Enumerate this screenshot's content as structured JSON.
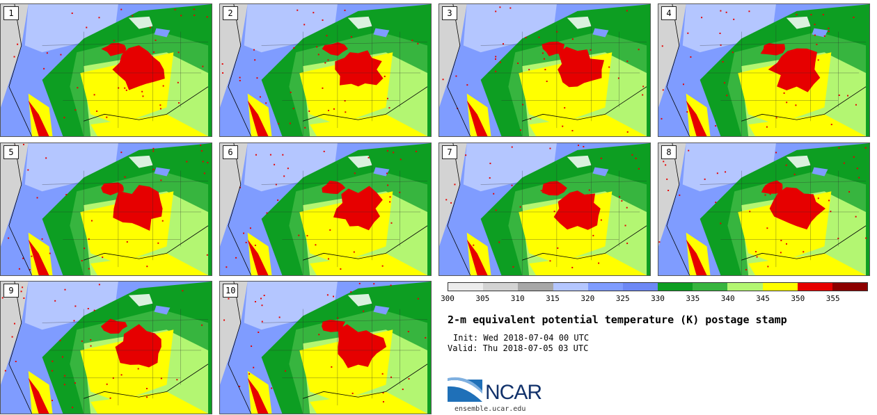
{
  "panels": [
    {
      "label": "1"
    },
    {
      "label": "2"
    },
    {
      "label": "3"
    },
    {
      "label": "4"
    },
    {
      "label": "5"
    },
    {
      "label": "6"
    },
    {
      "label": "7"
    },
    {
      "label": "8"
    },
    {
      "label": "9"
    },
    {
      "label": "10"
    }
  ],
  "colorbar": {
    "colors": [
      "#ececec",
      "#d3d3d3",
      "#a7a7a7",
      "#b4c6ff",
      "#7f9cff",
      "#6d88f5",
      "#0d9e22",
      "#37b53f",
      "#b3f672",
      "#ffff00",
      "#e60000",
      "#8c0000"
    ],
    "tick_labels": [
      "300",
      "305",
      "310",
      "315",
      "320",
      "325",
      "330",
      "335",
      "340",
      "345",
      "350",
      "355"
    ]
  },
  "title": "2-m equivalent potential temperature (K) postage stamp",
  "init": "Init: Wed 2018-07-04 00 UTC",
  "valid": "Valid: Thu 2018-07-05 03 UTC",
  "logo": {
    "text": "NCAR",
    "colors": {
      "navy": "#12326b",
      "blue": "#1f70b8",
      "light": "#7fb0e0"
    }
  },
  "site": "ensemble.ucar.edu"
}
